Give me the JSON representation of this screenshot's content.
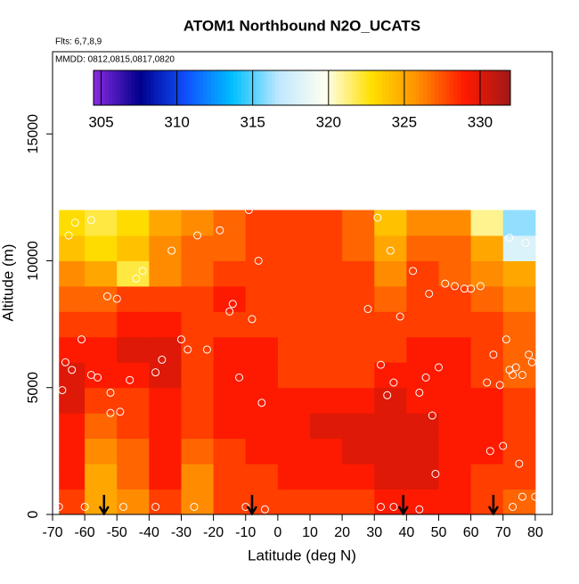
{
  "chart_data": {
    "type": "heatmap",
    "title": "ATOM1 Northbound N2O_UCATS",
    "subtitle": "Flts: 6,7,8,9",
    "annotation": "MMDD: 0812,0815,0817,0820",
    "xlabel": "Latitude (deg N)",
    "ylabel": "Altitude (m)",
    "xlim": [
      -70,
      85.3
    ],
    "ylim": [
      0,
      18240
    ],
    "xticks": [
      -70,
      -60,
      -50,
      -40,
      -30,
      -20,
      -10,
      0,
      10,
      20,
      30,
      40,
      50,
      60,
      70,
      80
    ],
    "yticks": [
      0,
      5000,
      10000,
      15000
    ],
    "x_edges": [
      -68,
      -60,
      -50,
      -40,
      -30,
      -20,
      -10,
      0,
      10,
      20,
      30,
      40,
      50,
      60,
      70,
      80
    ],
    "y_edges": [
      0,
      1000,
      2000,
      3000,
      4000,
      5000,
      6000,
      7000,
      8000,
      9000,
      10000,
      11000,
      12000
    ],
    "z": [
      [
        328,
        325,
        326,
        328,
        326,
        328,
        328,
        328,
        328,
        328,
        329,
        329,
        329,
        328,
        327
      ],
      [
        329,
        325,
        327,
        329,
        326,
        328,
        328,
        329,
        329,
        329,
        330,
        330,
        329,
        328,
        328
      ],
      [
        329,
        326,
        327,
        329,
        327,
        328,
        329,
        329,
        329,
        330,
        330,
        330,
        329,
        329,
        328
      ],
      [
        329,
        327,
        328,
        329,
        328,
        329,
        329,
        329,
        330,
        330,
        330,
        330,
        329,
        329,
        328
      ],
      [
        330,
        328,
        328,
        329,
        328,
        329,
        329,
        329,
        329,
        329,
        330,
        329,
        329,
        329,
        328
      ],
      [
        330,
        329,
        329,
        330,
        328,
        329,
        329,
        328,
        328,
        328,
        329,
        329,
        329,
        328,
        327
      ],
      [
        329,
        329,
        330,
        330,
        328,
        329,
        329,
        328,
        328,
        328,
        328,
        329,
        329,
        328,
        327
      ],
      [
        328,
        328,
        329,
        329,
        328,
        328,
        328,
        328,
        328,
        328,
        328,
        328,
        328,
        328,
        327
      ],
      [
        327,
        327,
        328,
        328,
        328,
        329,
        328,
        328,
        328,
        328,
        327,
        328,
        328,
        327,
        326
      ],
      [
        326,
        325,
        322,
        326,
        327,
        328,
        328,
        328,
        328,
        328,
        326,
        328,
        327,
        326,
        325
      ],
      [
        324,
        323,
        324,
        326,
        327,
        327,
        328,
        328,
        328,
        327,
        325,
        327,
        327,
        325,
        318
      ],
      [
        323,
        322,
        323,
        325,
        326,
        327,
        328,
        328,
        328,
        327,
        324,
        326,
        326,
        321,
        316
      ]
    ],
    "clim": [
      304.5,
      332
    ],
    "colorbar_ticks": [
      305,
      310,
      315,
      320,
      325,
      330
    ],
    "colormap": [
      "#8a2be2",
      "#00008b",
      "#1050ff",
      "#00bfff",
      "#bfe8ff",
      "#fffff0",
      "#ffe000",
      "#ff9000",
      "#ff1a00",
      "#a01818"
    ],
    "samples": {
      "color": "#ffffff",
      "x": [
        -68,
        -66,
        -67,
        -64,
        -61,
        -58,
        -56,
        -53,
        -52,
        -50,
        -52,
        -49,
        -46,
        -44,
        -42,
        -38,
        -36,
        -33,
        -30,
        -28,
        -25,
        -22,
        -18,
        -15,
        -14,
        -12,
        -9,
        -8,
        -6,
        -5,
        28,
        31,
        32,
        34,
        35,
        36,
        38,
        42,
        44,
        46,
        47,
        48,
        49,
        50,
        52,
        55,
        58,
        60,
        63,
        65,
        66,
        67,
        69,
        70,
        71,
        72,
        73,
        74,
        75,
        76,
        78,
        79,
        76,
        80,
        72,
        77,
        -60,
        -48,
        -38,
        -26,
        -10,
        -4,
        32,
        36,
        44,
        73,
        -65,
        -63,
        -58
      ],
      "y": [
        300,
        6000,
        4900,
        5700,
        6900,
        5500,
        5400,
        8600,
        4800,
        8500,
        4000,
        4050,
        5300,
        9300,
        9600,
        5600,
        6100,
        10400,
        6900,
        6500,
        11000,
        6500,
        11200,
        8000,
        8300,
        5400,
        12000,
        7700,
        10000,
        4400,
        8100,
        11700,
        5900,
        4700,
        10400,
        5200,
        7800,
        9600,
        4800,
        5400,
        8700,
        3900,
        1600,
        5800,
        9100,
        9000,
        8900,
        8900,
        9000,
        5200,
        2500,
        6300,
        5100,
        2700,
        6900,
        5700,
        5500,
        5800,
        2000,
        5500,
        6300,
        6000,
        700,
        700,
        10900,
        10700,
        300,
        300,
        300,
        300,
        300,
        200,
        300,
        300,
        200,
        300,
        11000,
        11500,
        11600
      ]
    },
    "arrows_lat": [
      -54,
      -8,
      39,
      67
    ]
  }
}
